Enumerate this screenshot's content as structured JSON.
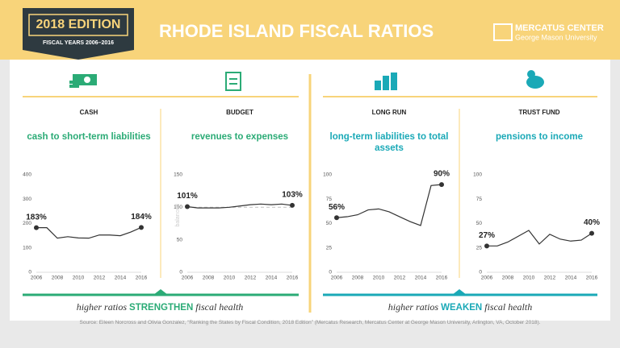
{
  "header": {
    "edition": "2018 EDITION",
    "years": "FISCAL YEARS 2006–2016",
    "title": "RHODE ISLAND FISCAL RATIOS",
    "org": "MERCATUS CENTER",
    "org_sub": "George Mason University"
  },
  "chart_data": [
    {
      "type": "line",
      "category": "CASH",
      "title": "cash to short-term liabilities",
      "title_color": "#2bab76",
      "color": "#333333",
      "x": [
        2006,
        2007,
        2008,
        2009,
        2010,
        2011,
        2012,
        2013,
        2014,
        2015,
        2016
      ],
      "values": [
        183,
        183,
        140,
        146,
        141,
        140,
        153,
        153,
        150,
        165,
        184
      ],
      "value_labels": [
        "183%",
        null,
        null,
        null,
        null,
        null,
        null,
        null,
        null,
        null,
        "184%"
      ],
      "xlim": [
        2006,
        2016
      ],
      "xticks": [
        2006,
        2008,
        2010,
        2012,
        2014,
        2016
      ],
      "ylim": [
        0,
        400
      ],
      "yticks": [
        0,
        100,
        200,
        300,
        400
      ],
      "grid": false
    },
    {
      "type": "line",
      "category": "BUDGET",
      "title": "revenues to expenses",
      "title_color": "#2bab76",
      "color": "#333333",
      "x": [
        2006,
        2007,
        2008,
        2009,
        2010,
        2011,
        2012,
        2013,
        2014,
        2015,
        2016
      ],
      "values": [
        101,
        99,
        99,
        99,
        100,
        102,
        104,
        105,
        104,
        105,
        103
      ],
      "value_labels": [
        "101%",
        null,
        null,
        null,
        null,
        null,
        null,
        null,
        null,
        null,
        "103%"
      ],
      "reference_line": 100,
      "reference_label": "balanced",
      "xlim": [
        2006,
        2016
      ],
      "xticks": [
        2006,
        2008,
        2010,
        2012,
        2014,
        2016
      ],
      "ylim": [
        0,
        150
      ],
      "yticks": [
        0,
        50,
        100,
        150
      ],
      "grid": false
    },
    {
      "type": "line",
      "category": "LONG RUN",
      "title": "long-term liabilities to total assets",
      "title_color": "#1aa9b7",
      "color": "#333333",
      "x": [
        2006,
        2007,
        2008,
        2009,
        2010,
        2011,
        2012,
        2013,
        2014,
        2015,
        2016
      ],
      "values": [
        56,
        57,
        59,
        64,
        65,
        62,
        57,
        52,
        48,
        89,
        90
      ],
      "value_labels": [
        "56%",
        null,
        null,
        null,
        null,
        null,
        null,
        null,
        null,
        null,
        "90%"
      ],
      "xlim": [
        2006,
        2016
      ],
      "xticks": [
        2006,
        2008,
        2010,
        2012,
        2014,
        2016
      ],
      "ylim": [
        0,
        100
      ],
      "yticks": [
        0,
        25,
        50,
        75,
        100
      ],
      "grid": false
    },
    {
      "type": "line",
      "category": "TRUST FUND",
      "title": "pensions to income",
      "title_color": "#1aa9b7",
      "color": "#333333",
      "x": [
        2006,
        2007,
        2008,
        2009,
        2010,
        2011,
        2012,
        2013,
        2014,
        2015,
        2016
      ],
      "values": [
        27,
        27,
        31,
        37,
        43,
        29,
        39,
        34,
        32,
        33,
        40
      ],
      "value_labels": [
        "27%",
        null,
        null,
        null,
        null,
        null,
        null,
        null,
        null,
        null,
        "40%"
      ],
      "xlim": [
        2006,
        2016
      ],
      "xticks": [
        2006,
        2008,
        2010,
        2012,
        2014,
        2016
      ],
      "ylim": [
        0,
        100
      ],
      "yticks": [
        0,
        25,
        50,
        75,
        100
      ],
      "grid": false
    }
  ],
  "captions": [
    {
      "before": "higher ratios",
      "emphasis": "STRENGTHEN",
      "after": "fiscal health",
      "color": "#2bab76"
    },
    {
      "before": "higher ratios",
      "emphasis": "WEAKEN",
      "after": "fiscal health",
      "color": "#1aa9b7"
    }
  ],
  "source": "Source: Eileen Norcross and Olivia Gonzalez, “Ranking the States by Fiscal Condition, 2018 Edition” (Mercatus Research, Mercatus Center at George Mason University, Arlington, VA, October 2018)."
}
